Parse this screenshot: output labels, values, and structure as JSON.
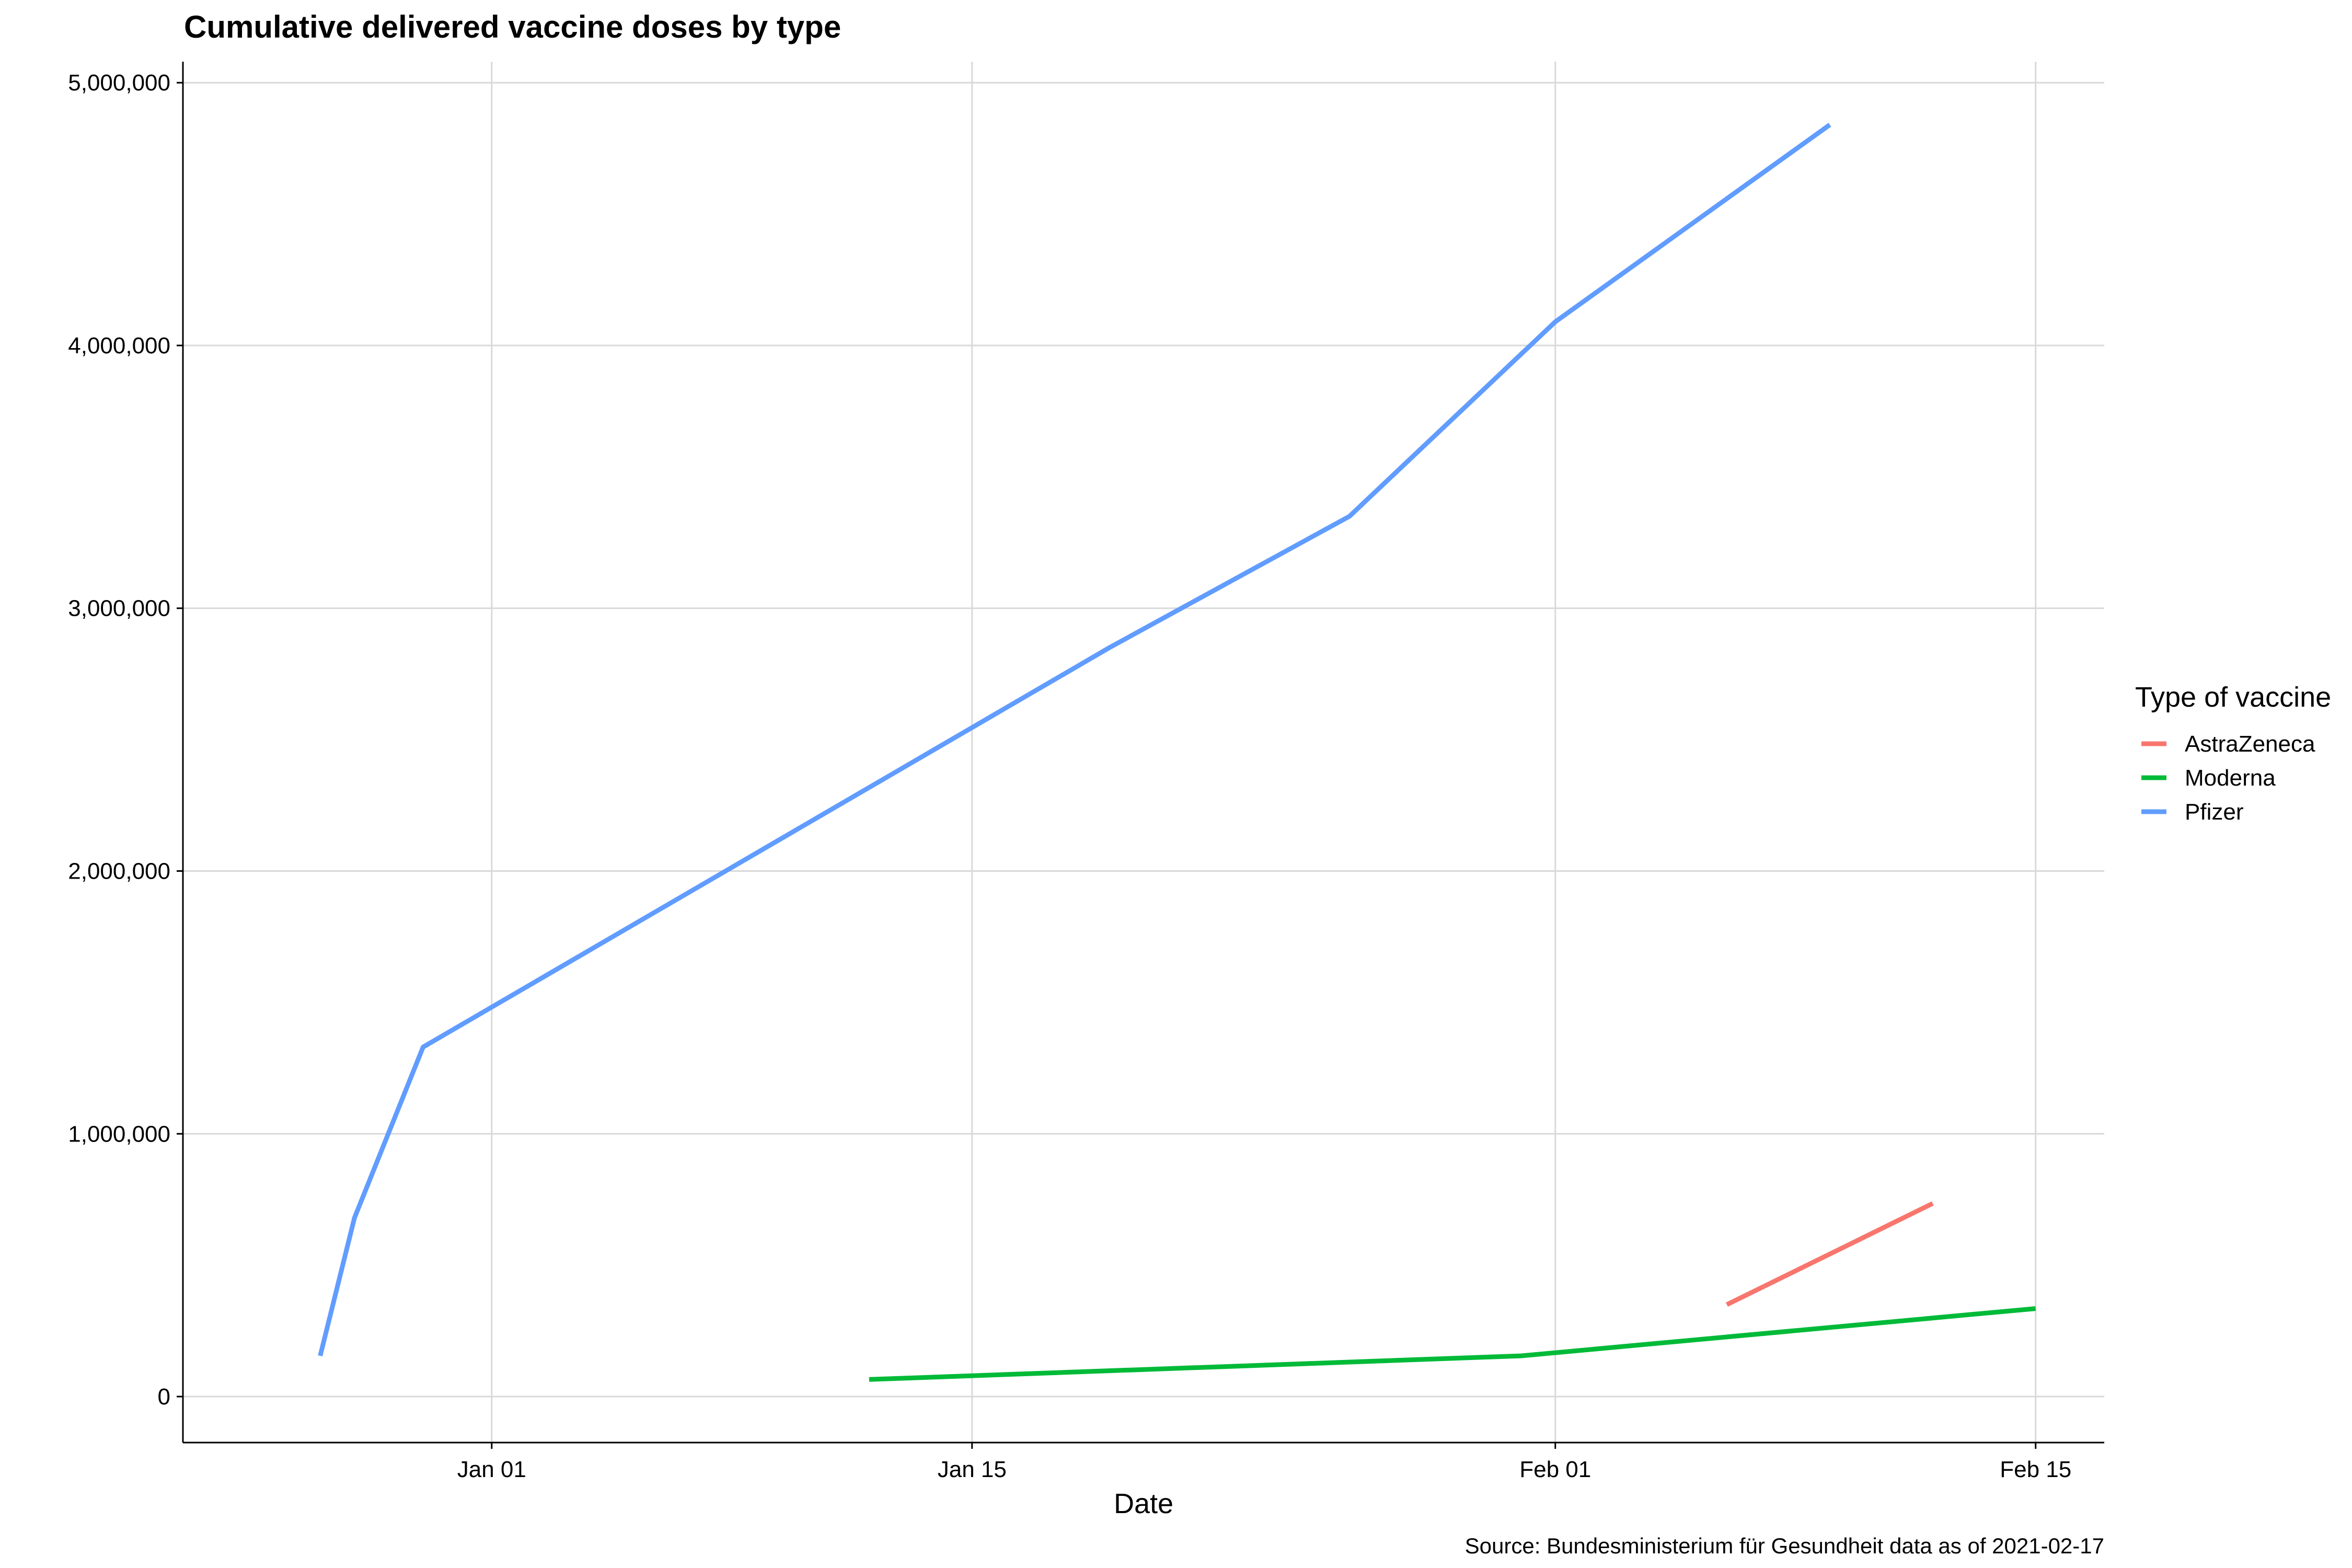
{
  "chart_data": {
    "type": "line",
    "title": "Cumulative delivered vaccine doses by type",
    "xlabel": "Date",
    "ylabel": "",
    "caption": "Source: Bundesministerium für Gesundheit data as of 2021-02-17",
    "x_axis": {
      "type": "date",
      "range": [
        "2020-12-23",
        "2021-02-17"
      ],
      "ticks": [
        {
          "date": "2021-01-01",
          "label": "Jan 01"
        },
        {
          "date": "2021-01-15",
          "label": "Jan 15"
        },
        {
          "date": "2021-02-01",
          "label": "Feb 01"
        },
        {
          "date": "2021-02-15",
          "label": "Feb 15"
        }
      ]
    },
    "y_axis": {
      "range": [
        -175000,
        5080000
      ],
      "ticks": [
        {
          "value": 0,
          "label": "0"
        },
        {
          "value": 1000000,
          "label": "1,000,000"
        },
        {
          "value": 2000000,
          "label": "2,000,000"
        },
        {
          "value": 3000000,
          "label": "3,000,000"
        },
        {
          "value": 4000000,
          "label": "4,000,000"
        },
        {
          "value": 5000000,
          "label": "5,000,000"
        }
      ]
    },
    "grid": true,
    "legend": {
      "title": "Type of vaccine",
      "placement": "right"
    },
    "series": [
      {
        "name": "AstraZeneca",
        "color": "#F8766D",
        "points": [
          {
            "x": "2021-02-06",
            "y": 350000
          },
          {
            "x": "2021-02-12",
            "y": 735000
          }
        ]
      },
      {
        "name": "Moderna",
        "color": "#00BA38",
        "points": [
          {
            "x": "2021-01-12",
            "y": 65000
          },
          {
            "x": "2021-01-31",
            "y": 155000
          },
          {
            "x": "2021-02-15",
            "y": 335000
          }
        ]
      },
      {
        "name": "Pfizer",
        "color": "#619CFF",
        "points": [
          {
            "x": "2020-12-27",
            "y": 155000
          },
          {
            "x": "2020-12-28",
            "y": 680000
          },
          {
            "x": "2020-12-30",
            "y": 1330000
          },
          {
            "x": "2021-01-19",
            "y": 2850000
          },
          {
            "x": "2021-01-26",
            "y": 3350000
          },
          {
            "x": "2021-02-01",
            "y": 4090000
          },
          {
            "x": "2021-02-09",
            "y": 4840000
          }
        ]
      }
    ]
  }
}
